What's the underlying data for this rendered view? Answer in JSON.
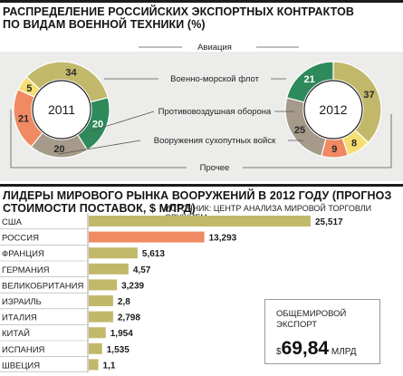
{
  "top": {
    "title_line1": "РАСПРЕДЕЛЕНИЕ РОССИЙСКИХ ЭКСПОРТНЫХ КОНТРАКТОВ",
    "title_line2": "ПО ВИДАМ ВОЕННОЙ ТЕХНИКИ (%)"
  },
  "bottom": {
    "title_line1": "ЛИДЕРЫ МИРОВОГО РЫНКА ВООРУЖЕНИЙ В 2012 ГОДУ (ПРОГНОЗ",
    "title_line2": "СТОИМОСТИ ПОСТАВОК, $ МЛРД)",
    "source": "ИСТОЧНИК: ЦЕНТР АНАЛИЗА МИРОВОЙ ТОРГОВЛИ ОРУЖИЕМ."
  },
  "total": {
    "label": "ОБЩЕМИРОВОЙ ЭКСПОРТ",
    "currency": "$",
    "value": "69,84",
    "unit": "МЛРД"
  },
  "colors": {
    "aviation": "#c2b86a",
    "navy": "#2f8a5b",
    "air_defense": "#a69a8a",
    "ground": "#ef8a62",
    "other": "#f6de72",
    "bar_default": "#c2b86a",
    "bar_highlight": "#ef8a62",
    "panel": "#ececea"
  },
  "chart_data": [
    {
      "type": "pie",
      "title": "2011",
      "legend": [
        "Авиация",
        "Военно-морской флот",
        "Противовоздушная оборона",
        "Вооружения сухопутных войск",
        "Прочее"
      ],
      "slices": [
        {
          "name": "Авиация",
          "value": 34,
          "label": "34",
          "color": "#c2b86a"
        },
        {
          "name": "Военно-морской флот",
          "value": 20,
          "label": "20",
          "color": "#2f8a5b"
        },
        {
          "name": "Противовоздушная оборона",
          "value": 20,
          "label": "20",
          "color": "#a69a8a"
        },
        {
          "name": "Вооружения сухопутных войск",
          "value": 21,
          "label": "21",
          "color": "#ef8a62"
        },
        {
          "name": "Прочее",
          "value": 5,
          "label": "5",
          "color": "#f6de72"
        }
      ]
    },
    {
      "type": "pie",
      "title": "2012",
      "slices": [
        {
          "name": "Авиация",
          "value": 37,
          "label": "37",
          "color": "#c2b86a"
        },
        {
          "name": "Прочее",
          "value": 8,
          "label": "8",
          "color": "#f6de72"
        },
        {
          "name": "Вооружения сухопутных войск",
          "value": 9,
          "label": "9",
          "color": "#ef8a62"
        },
        {
          "name": "Противовоздушная оборона",
          "value": 25,
          "label": "25",
          "color": "#a69a8a"
        },
        {
          "name": "Военно-морской флот",
          "value": 21,
          "label": "21",
          "color": "#2f8a5b"
        }
      ]
    },
    {
      "type": "bar",
      "orientation": "horizontal",
      "categories": [
        "США",
        "РОССИЯ",
        "ФРАНЦИЯ",
        "ГЕРМАНИЯ",
        "ВЕЛИКОБРИТАНИЯ",
        "ИЗРАИЛЬ",
        "ИТАЛИЯ",
        "КИТАЙ",
        "ИСПАНИЯ",
        "ШВЕЦИЯ"
      ],
      "values": [
        25.517,
        13.293,
        5.613,
        4.57,
        3.239,
        2.8,
        2.798,
        1.954,
        1.535,
        1.1
      ],
      "labels": [
        "25,517",
        "13,293",
        "5,613",
        "4,57",
        "3,239",
        "2,8",
        "2,798",
        "1,954",
        "1,535",
        "1,1"
      ],
      "highlight": "РОССИЯ",
      "xlim": [
        0,
        25.517
      ]
    }
  ]
}
